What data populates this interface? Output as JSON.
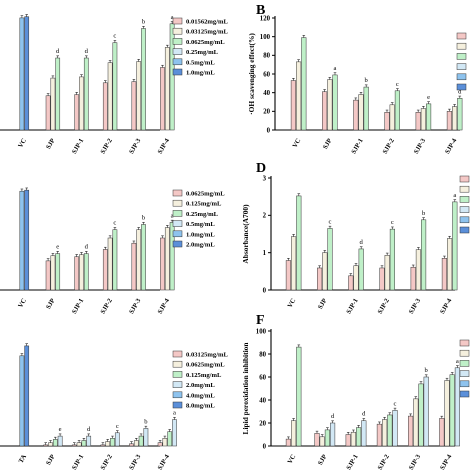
{
  "colors": [
    "#f4c8c6",
    "#f5f0de",
    "#bff0c8",
    "#d2e8f5",
    "#8ec3ee",
    "#5b8fd9"
  ],
  "chart_data": [
    {
      "panel": "A",
      "type": "bar",
      "letter": "",
      "ylabel": "",
      "ylim": [
        0,
        100
      ],
      "yticks": [],
      "legend": [
        "0.01562mg/mL",
        "0.03125mg/mL",
        "0.0625mg/mL",
        "0.25mg/mL",
        "0.5mg/mL",
        "1.0mg/mL"
      ],
      "categories": [
        "VC",
        "SJP",
        "SJP-1",
        "SJP-2",
        "SJP-3",
        "SJP-4"
      ],
      "values": [
        [
          null,
          null,
          null,
          null,
          95,
          96
        ],
        [
          29,
          44,
          61,
          null,
          null,
          null
        ],
        [
          30,
          45,
          61,
          null,
          null,
          null
        ],
        [
          40,
          57,
          74,
          null,
          null,
          null
        ],
        [
          41,
          58,
          86,
          null,
          null,
          null
        ],
        [
          53,
          70,
          90,
          null,
          null,
          null
        ]
      ],
      "sig": [
        [
          null,
          null,
          null,
          null,
          null,
          null
        ],
        [
          null,
          null,
          "d",
          null,
          null,
          null
        ],
        [
          null,
          null,
          "d",
          null,
          null,
          null
        ],
        [
          null,
          null,
          "c",
          null,
          null,
          null
        ],
        [
          null,
          null,
          "b",
          null,
          null,
          null
        ],
        [
          null,
          null,
          "a",
          null,
          null,
          null
        ]
      ]
    },
    {
      "panel": "B",
      "type": "bar",
      "letter": "B",
      "ylabel": "·OH scavenging effect(%)",
      "ylim": [
        0,
        120
      ],
      "yticks": [
        0,
        20,
        40,
        60,
        80,
        100,
        120
      ],
      "legend": [
        "",
        "",
        "",
        "",
        "",
        ""
      ],
      "categories": [
        "VC",
        "SJP",
        "SJP-1",
        "SJP-2",
        "SJP-3",
        "SJP-4"
      ],
      "values": [
        [
          53,
          73,
          99,
          null,
          null,
          null
        ],
        [
          41,
          54,
          59,
          null,
          null,
          null
        ],
        [
          32,
          38,
          46,
          null,
          null,
          null
        ],
        [
          19,
          27,
          42,
          null,
          null,
          null
        ],
        [
          19,
          23,
          28,
          null,
          null,
          null
        ],
        [
          20,
          25,
          34,
          null,
          null,
          null
        ]
      ],
      "sig": [
        [
          null,
          null,
          null,
          null,
          null,
          null
        ],
        [
          null,
          null,
          "a",
          null,
          null,
          null
        ],
        [
          null,
          null,
          "b",
          null,
          null,
          null
        ],
        [
          null,
          null,
          "c",
          null,
          null,
          null
        ],
        [
          null,
          null,
          "e",
          null,
          null,
          null
        ],
        [
          null,
          null,
          "d",
          null,
          null,
          null
        ]
      ]
    },
    {
      "panel": "C",
      "type": "bar",
      "letter": "",
      "ylabel": "",
      "ylim": [
        0,
        100
      ],
      "yticks": [],
      "legend": [
        "0.0625mg/mL",
        "0.125mg/mL",
        "0.25mg/mL",
        "0.5mg/mL",
        "1.0mg/mL",
        "2.0mg/mL"
      ],
      "categories": [
        "VC",
        "SJP",
        "SJP-1",
        "SJP-2",
        "SJP-3",
        "SJP-4"
      ],
      "values": [
        [
          null,
          null,
          null,
          null,
          95,
          96
        ],
        [
          28,
          33,
          35,
          null,
          null,
          null
        ],
        [
          32,
          34,
          35,
          null,
          null,
          null
        ],
        [
          39,
          50,
          58,
          null,
          null,
          null
        ],
        [
          45,
          58,
          63,
          null,
          null,
          null
        ],
        [
          50,
          60,
          65,
          null,
          null,
          null
        ]
      ],
      "sig": [
        [
          null,
          null,
          null,
          null,
          null,
          null
        ],
        [
          null,
          null,
          "e",
          null,
          null,
          null
        ],
        [
          null,
          null,
          "d",
          null,
          null,
          null
        ],
        [
          null,
          null,
          "c",
          null,
          null,
          null
        ],
        [
          null,
          null,
          "b",
          null,
          null,
          null
        ],
        [
          null,
          null,
          "a",
          null,
          null,
          null
        ]
      ]
    },
    {
      "panel": "D",
      "type": "bar",
      "letter": "D",
      "ylabel": "Absorbance(A700)",
      "ylim": [
        0,
        3
      ],
      "yticks": [
        0,
        1,
        2,
        3
      ],
      "legend": [
        "",
        "",
        "",
        "",
        "",
        ""
      ],
      "categories": [
        "VC",
        "SJP",
        "SJP-1",
        "SJP-2",
        "SJP-3",
        "SJP-4"
      ],
      "values": [
        [
          0.79,
          1.43,
          2.52,
          null,
          null,
          null
        ],
        [
          0.59,
          1.0,
          1.65,
          null,
          null,
          null
        ],
        [
          0.38,
          0.65,
          1.1,
          null,
          null,
          null
        ],
        [
          0.59,
          0.93,
          1.63,
          null,
          null,
          null
        ],
        [
          0.61,
          1.08,
          1.88,
          null,
          null,
          null
        ],
        [
          0.85,
          1.38,
          2.36,
          null,
          null,
          null
        ]
      ],
      "sig": [
        [
          null,
          null,
          null,
          null,
          null,
          null
        ],
        [
          null,
          null,
          "c",
          null,
          null,
          null
        ],
        [
          null,
          null,
          "d",
          null,
          null,
          null
        ],
        [
          null,
          null,
          "c",
          null,
          null,
          null
        ],
        [
          null,
          null,
          "b",
          null,
          null,
          null
        ],
        [
          null,
          null,
          "a",
          null,
          null,
          null
        ]
      ]
    },
    {
      "panel": "E",
      "type": "bar",
      "letter": "",
      "ylabel": "",
      "ylim": [
        0,
        100
      ],
      "yticks": [],
      "legend": [
        "0.03125mg/mL",
        "0.0625mg/mL",
        "0.125mg/mL",
        "2.0mg/mL",
        "4.0mg/mL",
        "8.0mg/mL"
      ],
      "categories": [
        "TA",
        "SJP",
        "SJP-1",
        "SJP-2",
        "SJP-3",
        "SJP-4"
      ],
      "values": [
        [
          null,
          null,
          null,
          null,
          82,
          91
        ],
        [
          1,
          3,
          6,
          9,
          null,
          null
        ],
        [
          1,
          3,
          5,
          9,
          null,
          null
        ],
        [
          1,
          4,
          7,
          12,
          null,
          null
        ],
        [
          2,
          5,
          9,
          16,
          null,
          null
        ],
        [
          3,
          7,
          13,
          24,
          null,
          null
        ]
      ],
      "sig": [
        [
          null,
          null,
          null,
          null,
          null,
          null
        ],
        [
          null,
          null,
          null,
          "e",
          null,
          null
        ],
        [
          null,
          null,
          null,
          "d",
          null,
          null
        ],
        [
          null,
          null,
          null,
          "c",
          null,
          null
        ],
        [
          null,
          null,
          null,
          "b",
          null,
          null
        ],
        [
          null,
          null,
          null,
          "a",
          null,
          null
        ]
      ]
    },
    {
      "panel": "F",
      "type": "bar",
      "letter": "F",
      "ylabel": "Lipid peroxidation inhibition",
      "ylim": [
        0,
        100
      ],
      "yticks": [
        0,
        20,
        40,
        60,
        80,
        100
      ],
      "legend": [
        "",
        "",
        "",
        "",
        "",
        ""
      ],
      "categories": [
        "VC",
        "SJP",
        "SJP-1",
        "SJP-2",
        "SJP-3",
        "SJP-4"
      ],
      "values": [
        [
          6,
          22,
          86,
          null,
          null,
          null
        ],
        [
          11,
          8,
          14,
          20,
          null,
          null
        ],
        [
          10,
          12,
          16,
          22,
          null,
          null
        ],
        [
          19,
          23,
          27,
          31,
          null,
          null
        ],
        [
          26,
          41,
          54,
          60,
          null,
          null
        ],
        [
          24,
          57,
          62,
          68,
          null,
          null
        ]
      ],
      "sig": [
        [
          null,
          null,
          null,
          null,
          null,
          null
        ],
        [
          null,
          null,
          null,
          "d",
          null,
          null
        ],
        [
          null,
          null,
          null,
          "d",
          null,
          null
        ],
        [
          null,
          null,
          null,
          "c",
          null,
          null
        ],
        [
          null,
          null,
          null,
          "b",
          null,
          null
        ],
        [
          null,
          null,
          null,
          "a",
          null,
          null
        ]
      ]
    }
  ]
}
